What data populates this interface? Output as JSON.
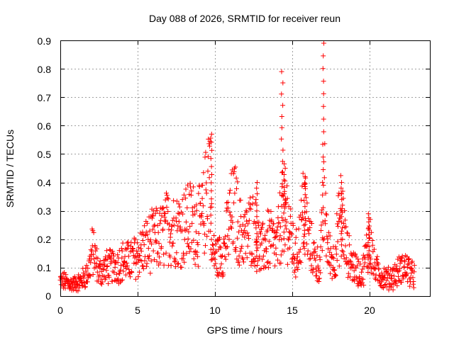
{
  "chart_data": {
    "type": "scatter",
    "title": "Day 088 of 2026, SRMTID for receiver reun",
    "xlabel": "GPS time / hours",
    "ylabel": "SRMTID / TECUs",
    "xlim": [
      0,
      23.9
    ],
    "ylim": [
      0,
      0.9
    ],
    "x_ticks": [
      "0",
      "5",
      "10",
      "15",
      "20"
    ],
    "y_ticks": [
      "0",
      "0.1",
      "0.2",
      "0.3",
      "0.4",
      "0.5",
      "0.6",
      "0.7",
      "0.8",
      "0.9"
    ],
    "grid": true,
    "marker": "+",
    "series_color": "#ff0000",
    "series": [
      {
        "name": "SRMTID",
        "envelope": [
          [
            0.0,
            0.05
          ],
          [
            0.3,
            0.05
          ],
          [
            0.8,
            0.04
          ],
          [
            1.3,
            0.05
          ],
          [
            1.8,
            0.08
          ],
          [
            2.1,
            0.16
          ],
          [
            2.5,
            0.08
          ],
          [
            3.0,
            0.1
          ],
          [
            3.5,
            0.1
          ],
          [
            4.0,
            0.12
          ],
          [
            4.5,
            0.12
          ],
          [
            5.0,
            0.14
          ],
          [
            5.5,
            0.17
          ],
          [
            6.0,
            0.19
          ],
          [
            6.5,
            0.2
          ],
          [
            7.0,
            0.24
          ],
          [
            7.5,
            0.23
          ],
          [
            8.0,
            0.24
          ],
          [
            8.5,
            0.26
          ],
          [
            9.0,
            0.24
          ],
          [
            9.3,
            0.28
          ],
          [
            9.55,
            0.42
          ],
          [
            9.7,
            0.46
          ],
          [
            9.8,
            0.15
          ],
          [
            10.2,
            0.13
          ],
          [
            10.6,
            0.16
          ],
          [
            11.0,
            0.27
          ],
          [
            11.3,
            0.3
          ],
          [
            11.6,
            0.22
          ],
          [
            12.0,
            0.2
          ],
          [
            12.4,
            0.24
          ],
          [
            12.7,
            0.2
          ],
          [
            13.0,
            0.15
          ],
          [
            13.5,
            0.2
          ],
          [
            14.0,
            0.16
          ],
          [
            14.3,
            0.27
          ],
          [
            14.6,
            0.3
          ],
          [
            14.9,
            0.2
          ],
          [
            15.2,
            0.13
          ],
          [
            15.5,
            0.2
          ],
          [
            15.8,
            0.33
          ],
          [
            16.0,
            0.2
          ],
          [
            16.5,
            0.12
          ],
          [
            16.8,
            0.1
          ],
          [
            17.1,
            0.35
          ],
          [
            17.3,
            0.15
          ],
          [
            17.7,
            0.12
          ],
          [
            18.2,
            0.3
          ],
          [
            18.5,
            0.15
          ],
          [
            19.0,
            0.1
          ],
          [
            19.5,
            0.07
          ],
          [
            20.0,
            0.2
          ],
          [
            20.3,
            0.1
          ],
          [
            20.7,
            0.07
          ],
          [
            21.2,
            0.06
          ],
          [
            21.6,
            0.07
          ],
          [
            22.0,
            0.09
          ],
          [
            22.4,
            0.1
          ],
          [
            22.8,
            0.07
          ]
        ],
        "spikes": [
          [
            9.75,
            0.57
          ],
          [
            12.7,
            0.4
          ],
          [
            14.35,
            0.79
          ],
          [
            14.5,
            0.45
          ],
          [
            15.8,
            0.42
          ],
          [
            17.0,
            0.89
          ],
          [
            18.2,
            0.4
          ],
          [
            19.95,
            0.29
          ]
        ]
      }
    ]
  }
}
